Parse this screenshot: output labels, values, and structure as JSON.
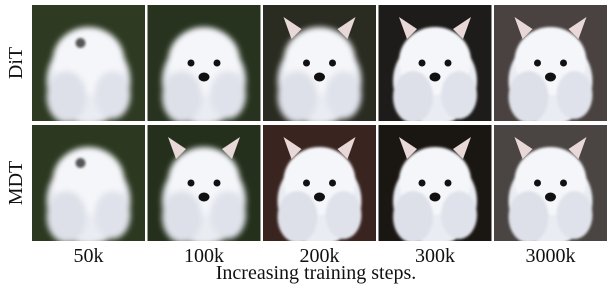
{
  "rows": [
    "DiT",
    "MDT"
  ],
  "columns": [
    "50k",
    "100k",
    "200k",
    "300k",
    "3000k"
  ],
  "caption": "Increasing training steps."
}
